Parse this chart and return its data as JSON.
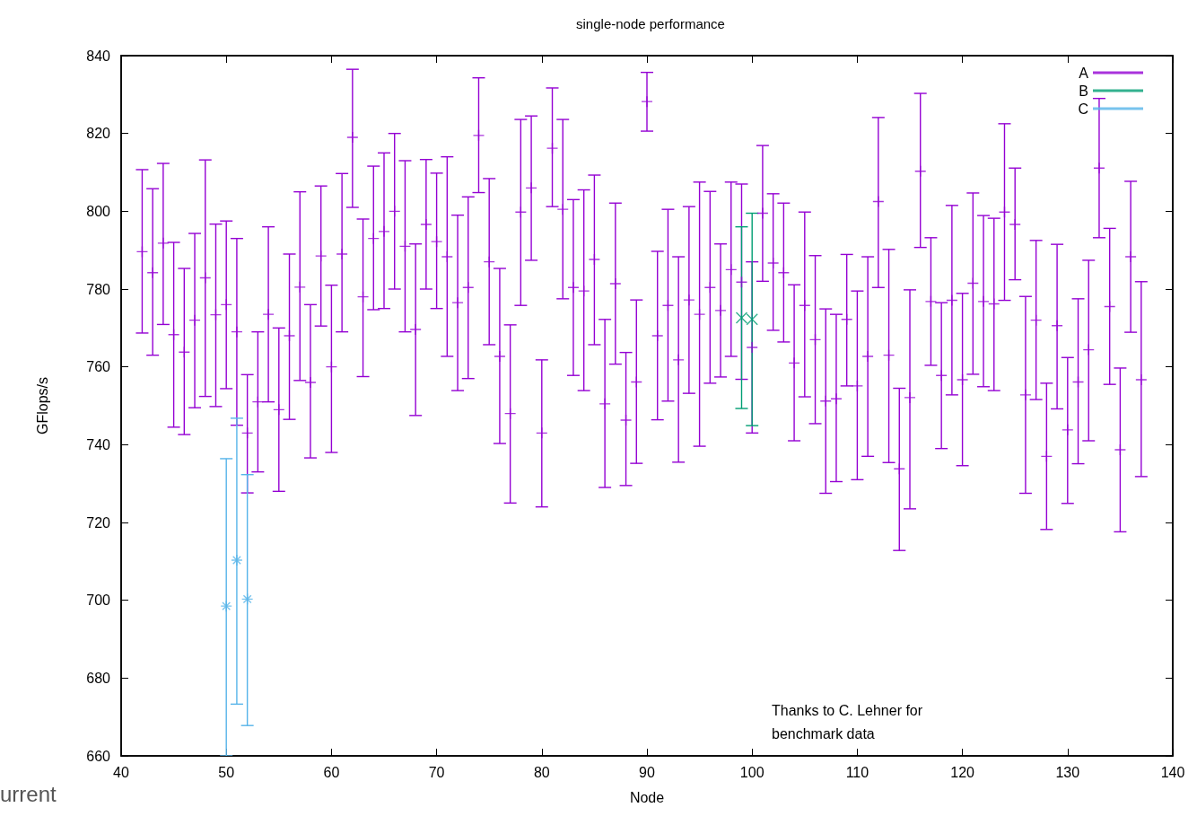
{
  "chart_data": {
    "type": "scatter",
    "title": "single-node performance",
    "xlabel": "Node",
    "ylabel": "GFlops/s",
    "annotations": [
      "Thanks to C. Lehner for benchmark data",
      "urrent"
    ],
    "xlim": [
      40,
      140
    ],
    "xticks": [
      40,
      50,
      60,
      70,
      80,
      90,
      100,
      110,
      120,
      130,
      140
    ],
    "ylim": [
      660,
      840
    ],
    "yticks": [
      660,
      680,
      700,
      720,
      740,
      760,
      780,
      800,
      820,
      840
    ],
    "grid": false,
    "legend": "top right",
    "series": [
      {
        "name": "A",
        "color": "#9400d3",
        "marker": "cross",
        "x": [
          42,
          43,
          44,
          45,
          46,
          47,
          48,
          49,
          50,
          51,
          52,
          53,
          54,
          55,
          56,
          57,
          58,
          59,
          60,
          61,
          62,
          63,
          64,
          65,
          66,
          67,
          68,
          69,
          70,
          71,
          72,
          73,
          74,
          75,
          76,
          77,
          78,
          79,
          80,
          81,
          82,
          83,
          84,
          85,
          86,
          87,
          88,
          89,
          90,
          91,
          92,
          93,
          94,
          95,
          96,
          97,
          98,
          99,
          100,
          101,
          102,
          103,
          104,
          105,
          106,
          107,
          108,
          109,
          110,
          111,
          112,
          113,
          114,
          115,
          116,
          117,
          118,
          119,
          120,
          121,
          122,
          123,
          124,
          125,
          126,
          127,
          128,
          129,
          130,
          131,
          132,
          133,
          134,
          135,
          136,
          137
        ],
        "values": [
          789.6,
          784.2,
          791.8,
          768.3,
          763.8,
          772,
          782.9,
          773.4,
          776,
          769,
          743,
          751,
          773.5,
          749,
          768,
          780.5,
          756,
          788.5,
          760,
          789,
          819,
          778,
          793,
          794.8,
          800,
          791,
          769.6,
          796.6,
          792.2,
          788.3,
          776.5,
          780.4,
          819.5,
          787,
          762.7,
          748,
          799.8,
          806,
          743,
          816.2,
          800.5,
          780.4,
          779.5,
          787.6,
          750.5,
          781.4,
          746.3,
          756.1,
          828.2,
          768,
          775.8,
          761.8,
          777.2,
          773.5,
          780.4,
          774.5,
          785,
          781.8,
          765,
          799.5,
          786.7,
          784.2,
          761,
          775.8,
          767,
          751.2,
          751.8,
          772.2,
          755.1,
          762.7,
          802.5,
          763,
          733.8,
          752.1,
          810.3,
          776.8,
          757.8,
          777.1,
          756.7,
          781.5,
          776.8,
          776.2,
          799.8,
          796.6,
          752.8,
          772,
          737,
          770.6,
          743.8,
          756.1,
          764.4,
          811.1,
          775.5,
          738.7,
          788.3,
          756.7
        ],
        "errors": [
          [
            768.7,
            810.7
          ],
          [
            763,
            805.8
          ],
          [
            770.9,
            812.3
          ],
          [
            744.5,
            792
          ],
          [
            742.6,
            785.3
          ],
          [
            749.5,
            794.3
          ],
          [
            752.4,
            813.2
          ],
          [
            749.8,
            796.7
          ],
          [
            754.4,
            797.5
          ],
          [
            745,
            793
          ],
          [
            727.6,
            758
          ],
          [
            733,
            769
          ],
          [
            751,
            796
          ],
          [
            728,
            770
          ],
          [
            746.5,
            789
          ],
          [
            756.5,
            805
          ],
          [
            736.6,
            776
          ],
          [
            770.5,
            806.5
          ],
          [
            738,
            781
          ],
          [
            769,
            809.7
          ],
          [
            801,
            836.5
          ],
          [
            757.5,
            798
          ],
          [
            774.7,
            811.6
          ],
          [
            775,
            815
          ],
          [
            780,
            820
          ],
          [
            769,
            813
          ],
          [
            747.5,
            791.6
          ],
          [
            780,
            813.3
          ],
          [
            775,
            809.8
          ],
          [
            762.7,
            814
          ],
          [
            753.9,
            799
          ],
          [
            757,
            803.7
          ],
          [
            804.8,
            834.3
          ],
          [
            765.7,
            808.4
          ],
          [
            740.3,
            785.3
          ],
          [
            725,
            770.8
          ],
          [
            775.8,
            823.6
          ],
          [
            787.4,
            824.5
          ],
          [
            724,
            761.8
          ],
          [
            801.2,
            831.7
          ],
          [
            777.5,
            823.6
          ],
          [
            757.8,
            803
          ],
          [
            753.9,
            805.5
          ],
          [
            765.7,
            809.3
          ],
          [
            729,
            772.2
          ],
          [
            760.7,
            802.1
          ],
          [
            729.5,
            763.7
          ],
          [
            735.2,
            777.2
          ],
          [
            820.6,
            835.7
          ],
          [
            746.4,
            789.7
          ],
          [
            751.2,
            800.5
          ],
          [
            735.5,
            788.3
          ],
          [
            753.2,
            801.2
          ],
          [
            739.6,
            807.5
          ],
          [
            755.8,
            805.1
          ],
          [
            757.4,
            791.6
          ],
          [
            762.7,
            807.5
          ],
          [
            756.8,
            807
          ],
          [
            743,
            787
          ],
          [
            782,
            816.9
          ],
          [
            769.4,
            804.5
          ],
          [
            766.4,
            802.1
          ],
          [
            741,
            781.1
          ],
          [
            752.3,
            799.8
          ],
          [
            745.4,
            788.6
          ],
          [
            727.5,
            774.9
          ],
          [
            730.5,
            773.5
          ],
          [
            755.1,
            788.9
          ],
          [
            731,
            779.5
          ],
          [
            737,
            788.3
          ],
          [
            780.4,
            824.1
          ],
          [
            735.4,
            790.2
          ],
          [
            712.8,
            754.5
          ],
          [
            723.5,
            779.8
          ],
          [
            790.7,
            830.3
          ],
          [
            760.4,
            793.2
          ],
          [
            739,
            776.5
          ],
          [
            752.8,
            801.5
          ],
          [
            734.6,
            778.9
          ],
          [
            758.1,
            804.7
          ],
          [
            754.9,
            798.9
          ],
          [
            753.9,
            798.2
          ],
          [
            777.1,
            822.5
          ],
          [
            782.4,
            811.1
          ],
          [
            727.5,
            778.1
          ],
          [
            751.6,
            792.5
          ],
          [
            718.2,
            755.8
          ],
          [
            749.2,
            791.5
          ],
          [
            724.9,
            762.4
          ],
          [
            735.1,
            777.5
          ],
          [
            741,
            787.4
          ],
          [
            793.2,
            829
          ],
          [
            755.5,
            795.6
          ],
          [
            717.6,
            759.7
          ],
          [
            768.9,
            807.7
          ],
          [
            731.8,
            781.9
          ]
        ]
      },
      {
        "name": "B",
        "color": "#009e73",
        "marker": "cross",
        "x": [
          99,
          100
        ],
        "values": [
          772.6,
          772.2
        ],
        "errors": [
          [
            749.3,
            796
          ],
          [
            744.9,
            799.5
          ]
        ]
      },
      {
        "name": "C",
        "color": "#56b4e9",
        "marker": "cross",
        "x": [
          50,
          51,
          52
        ],
        "values": [
          698.5,
          710.3,
          700.3
        ],
        "errors": [
          [
            660,
            736.4
          ],
          [
            673.3,
            746.8
          ],
          [
            667.8,
            732.3
          ]
        ]
      }
    ]
  }
}
